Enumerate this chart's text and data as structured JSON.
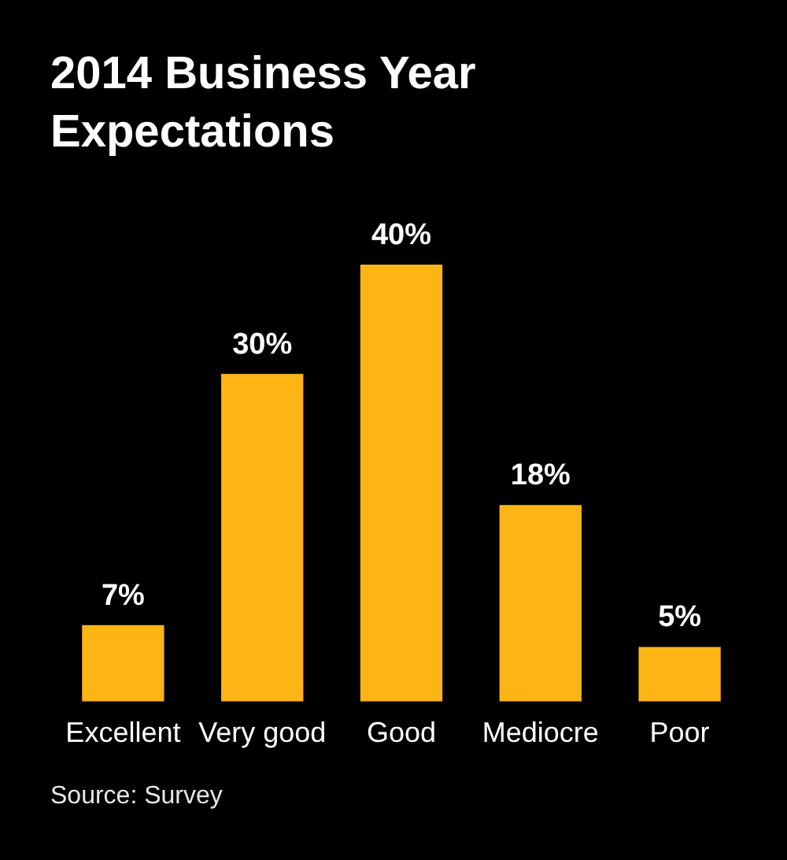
{
  "chart_data": {
    "type": "bar",
    "title": "2014 Business Year Expectations",
    "categories": [
      "Excellent",
      "Very good",
      "Good",
      "Mediocre",
      "Poor"
    ],
    "values": [
      7,
      30,
      40,
      18,
      5
    ],
    "value_labels": [
      "7%",
      "30%",
      "40%",
      "18%",
      "5%"
    ],
    "color": "#fcb514",
    "annotations": [
      "Source: Survey"
    ]
  }
}
